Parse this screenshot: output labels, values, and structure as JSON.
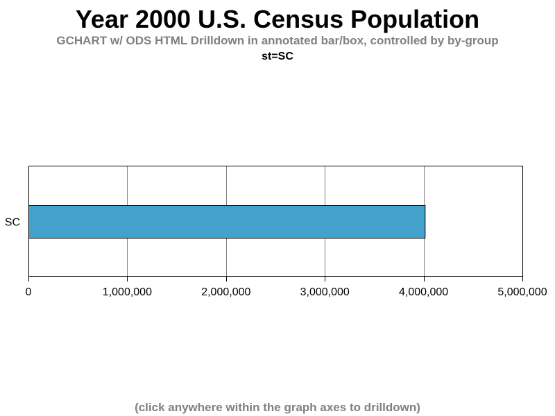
{
  "title": "Year 2000 U.S. Census Population",
  "subtitle": "GCHART w/ ODS HTML Drilldown in annotated bar/box, controlled by by-group",
  "bygroup": "st=SC",
  "footnote": "(click anywhere within the graph axes to drilldown)",
  "colors": {
    "bar_fill": "#42a2cc",
    "bar_stroke": "#000000",
    "grid": "#808080",
    "frame": "#000000"
  },
  "chart_data": {
    "type": "bar",
    "orientation": "horizontal",
    "categories": [
      "SC"
    ],
    "values": [
      4012012
    ],
    "xlim": [
      0,
      5000000
    ],
    "xticks": [
      0,
      1000000,
      2000000,
      3000000,
      4000000,
      5000000
    ],
    "xtick_labels": [
      "0",
      "1,000,000",
      "2,000,000",
      "3,000,000",
      "4,000,000",
      "5,000,000"
    ],
    "grid": true
  }
}
